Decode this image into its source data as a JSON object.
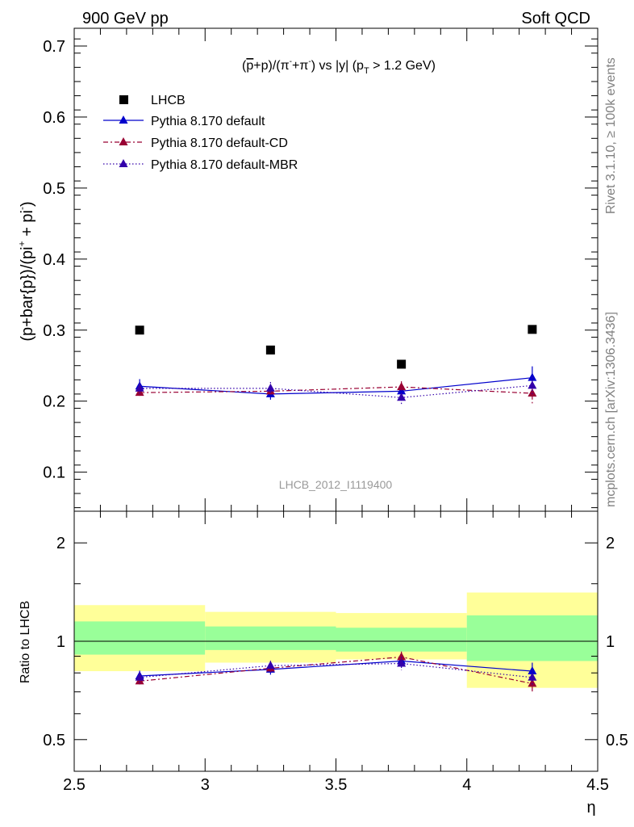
{
  "header": {
    "left": "900 GeV pp",
    "right": "Soft QCD"
  },
  "side_labels": {
    "rivet": "Rivet 3.1.10, ≥ 100k events",
    "mcplots": "mcplots.cern.ch [arXiv:1306.3436]"
  },
  "watermark": "LHCB_2012_I1119400",
  "colors": {
    "data": "#000000",
    "default": "#0000cc",
    "cd": "#990033",
    "mbr": "#3300aa",
    "band_outer": "#ffff99",
    "band_inner": "#99ff99"
  },
  "chart_data": [
    {
      "type": "scatter",
      "title": "(p̅+p)/(π⁻+π⁻) vs |y| (pT > 1.2 GeV)",
      "title_parts": {
        "open": "(",
        "pbar": "p",
        "mid1": "+p)/(π",
        "sup1": "-",
        "mid2": "+π",
        "sup2": "-",
        "mid3": ") vs |y| (p",
        "sub": "T",
        "end": " > 1.2 GeV)"
      },
      "ylabel": "(p+bar{p})/(pi⁺ + pi⁻)",
      "ylabel_parts": {
        "main": "(p+bar{p})/(pi",
        "sup1": "+",
        "mid": " + pi",
        "sup2": "-",
        "end": ")"
      },
      "xlim": [
        2.5,
        4.5
      ],
      "ylim": [
        0.045,
        0.725
      ],
      "y_ticks": [
        "0.1",
        "0.2",
        "0.3",
        "0.4",
        "0.5",
        "0.6",
        "0.7"
      ],
      "x": [
        2.75,
        3.25,
        3.75,
        4.25
      ],
      "x_bins": [
        [
          2.5,
          3.0
        ],
        [
          3.0,
          3.5
        ],
        [
          3.5,
          4.0
        ],
        [
          4.0,
          4.5
        ]
      ],
      "legend_position": "top-left",
      "series": [
        {
          "name": "LHCB",
          "key": "data",
          "values": [
            0.3,
            0.272,
            0.252,
            0.301
          ],
          "errors": [
            0.0,
            0.0,
            0.0,
            0.0
          ]
        },
        {
          "name": "Pythia 8.170 default",
          "key": "default",
          "values": [
            0.221,
            0.21,
            0.214,
            0.233
          ],
          "errors": [
            0.01,
            0.008,
            0.008,
            0.016
          ]
        },
        {
          "name": "Pythia 8.170 default-CD",
          "key": "cd",
          "values": [
            0.212,
            0.214,
            0.22,
            0.211
          ],
          "errors": [
            0.008,
            0.008,
            0.008,
            0.014
          ]
        },
        {
          "name": "Pythia 8.170 default-MBR",
          "key": "mbr",
          "values": [
            0.218,
            0.218,
            0.205,
            0.222
          ],
          "errors": [
            0.008,
            0.009,
            0.011,
            0.012
          ]
        }
      ]
    },
    {
      "type": "scatter",
      "ylabel": "Ratio to LHCB",
      "xlabel": "η",
      "xlim": [
        2.5,
        4.5
      ],
      "ylim": [
        0.4,
        2.5
      ],
      "y_scale": "log",
      "y_ticks": [
        "0.5",
        "1",
        "2"
      ],
      "x_ticks": [
        "2.5",
        "3",
        "3.5",
        "4",
        "4.5"
      ],
      "x": [
        2.75,
        3.25,
        3.75,
        4.25
      ],
      "bands": {
        "outer": [
          [
            0.81,
            1.29
          ],
          [
            0.86,
            1.23
          ],
          [
            0.88,
            1.22
          ],
          [
            0.72,
            1.41
          ]
        ],
        "inner": [
          [
            0.91,
            1.15
          ],
          [
            0.94,
            1.11
          ],
          [
            0.93,
            1.1
          ],
          [
            0.87,
            1.2
          ]
        ]
      },
      "series": [
        {
          "name": "Pythia 8.170 default",
          "key": "default",
          "values": [
            0.783,
            0.82,
            0.87,
            0.81
          ],
          "errors": [
            0.03,
            0.03,
            0.03,
            0.05
          ]
        },
        {
          "name": "Pythia 8.170 default-CD",
          "key": "cd",
          "values": [
            0.755,
            0.827,
            0.895,
            0.742
          ],
          "errors": [
            0.03,
            0.03,
            0.035,
            0.045
          ]
        },
        {
          "name": "Pythia 8.170 default-MBR",
          "key": "mbr",
          "values": [
            0.775,
            0.842,
            0.855,
            0.775
          ],
          "errors": [
            0.03,
            0.03,
            0.04,
            0.04
          ]
        }
      ]
    }
  ]
}
